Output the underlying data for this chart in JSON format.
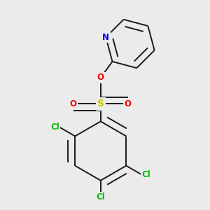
{
  "bg_color": "#ebebeb",
  "bond_color": "#1a1a1a",
  "bond_lw": 1.4,
  "dbo": 0.035,
  "N_color": "#0000ee",
  "O_color": "#ee0000",
  "S_color": "#cccc00",
  "Cl_color": "#00bb00",
  "font_size": 8.5,
  "S_font_size": 10,
  "figsize": [
    3.0,
    3.0
  ],
  "dpi": 100,
  "xlim": [
    0.05,
    0.95
  ],
  "ylim": [
    0.02,
    0.98
  ]
}
